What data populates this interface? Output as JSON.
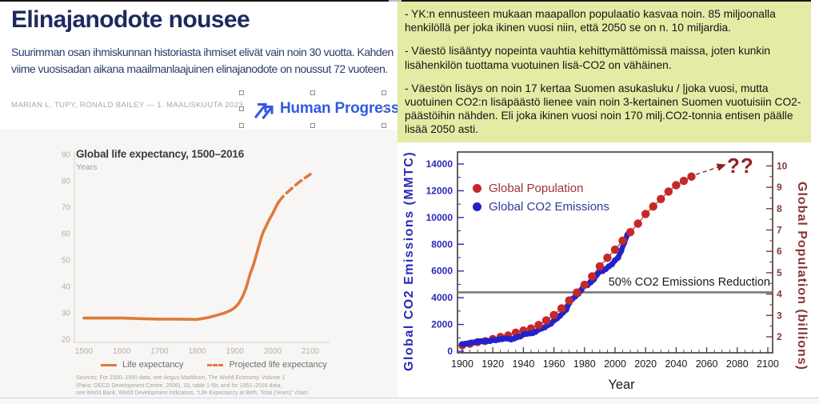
{
  "article": {
    "title": "Elinajanodote nousee",
    "subtitle": "Suurimman osan ihmiskunnan historiasta ihmiset elivät vain noin 30 vuotta. Kahden viime vuosisadan aikana maailmanlaajuinen elinajanodote on noussut 72 vuoteen.",
    "byline": "MARIAN L. TUPY, RONALD BAILEY — 1. MAALISKUUTA 2023",
    "logo": {
      "text": "Human Progress",
      "color": "#2f5ce0"
    }
  },
  "notes": {
    "background": "#e4eba4",
    "paragraphs": [
      "- YK:n ennusteen mukaan maapallon populaatio kasvaa noin. 85 miljoonalla henkilöllä per joka ikinen vuosi niin, että 2050 se on n. 10 miljardia.",
      "- Väestö lisääntyy nopeinta vauhtia kehittymättömissä maissa, joten kunkin lisähenkilön tuottama vuotuinen lisä-CO2 on vähäinen.",
      "- Väestön lisäys on noin 17 kertaa Suomen asukasluku / |joka vuosi, mutta vuotuinen CO2:n lisäpäästö lienee vain noin 3-kertainen Suomen vuotuisiin CO2- päästöihin nähden. Eli joka ikinen vuosi noin 170 milj.CO2-tonnia entisen päälle lisää 2050 asti."
    ]
  },
  "chart_data": [
    {
      "type": "line",
      "title": "Global life expectancy, 1500–2016",
      "subtitle": "Years",
      "xlim": [
        1500,
        2100
      ],
      "ylim": [
        20,
        90
      ],
      "x_ticks": [
        1500,
        1600,
        1700,
        1800,
        1900,
        2000,
        2100
      ],
      "y_ticks": [
        90,
        80,
        70,
        60,
        50,
        40,
        30,
        20
      ],
      "line_color": "#e0793c",
      "legend": [
        "Life expectancy",
        "Projected life expectancy"
      ],
      "series": [
        {
          "name": "Life expectancy",
          "style": "solid",
          "points": [
            [
              1500,
              28
            ],
            [
              1550,
              28
            ],
            [
              1600,
              28
            ],
            [
              1650,
              27.8
            ],
            [
              1700,
              27.6
            ],
            [
              1750,
              27.6
            ],
            [
              1800,
              27.5
            ],
            [
              1830,
              28.2
            ],
            [
              1850,
              29
            ],
            [
              1870,
              29.8
            ],
            [
              1890,
              31
            ],
            [
              1900,
              32
            ],
            [
              1910,
              33.5
            ],
            [
              1920,
              36
            ],
            [
              1930,
              39.5
            ],
            [
              1940,
              44.5
            ],
            [
              1950,
              48.5
            ],
            [
              1955,
              51
            ],
            [
              1960,
              53.5
            ],
            [
              1965,
              56
            ],
            [
              1970,
              58.5
            ],
            [
              1975,
              60.5
            ],
            [
              1980,
              62
            ],
            [
              1985,
              63.5
            ],
            [
              1990,
              65
            ],
            [
              1995,
              66.3
            ],
            [
              2000,
              67.5
            ],
            [
              2005,
              69
            ],
            [
              2010,
              70.5
            ],
            [
              2016,
              72
            ]
          ]
        },
        {
          "name": "Projected life expectancy",
          "style": "dashed",
          "points": [
            [
              2016,
              72
            ],
            [
              2030,
              74.5
            ],
            [
              2050,
              77
            ],
            [
              2070,
              79.5
            ],
            [
              2085,
              81
            ],
            [
              2100,
              82.5
            ]
          ]
        }
      ],
      "sources_lines": [
        "Sources: For 1500–1950 data, see Angus Maddison, The World Economy, Volume 1",
        "(Paris: OECD Development Centre, 2006), 33, table 1-5b; and for 1951–2016 data,",
        "see World Bank, World Development Indicators, “Life Expectancy at Birth, Total (Years)” chart."
      ]
    },
    {
      "type": "scatter",
      "xlabel": "Year",
      "xlim": [
        1896,
        2104
      ],
      "x_major_ticks": [
        1900,
        1920,
        1940,
        1960,
        1980,
        2000,
        2020,
        2040,
        2060,
        2080,
        2100
      ],
      "x_minor_step": 5,
      "left_axis": {
        "title": "Global CO2 Emissions (MMTC)",
        "color": "#2a2ab8",
        "ticks": [
          0,
          2000,
          4000,
          6000,
          8000,
          10000,
          12000,
          14000
        ],
        "minor_step": 1000,
        "range": [
          0,
          14000
        ]
      },
      "right_axis": {
        "title": "Global Population (billions)",
        "color": "#8b3434",
        "ticks": [
          2,
          3,
          4,
          5,
          6,
          7,
          8,
          9,
          10
        ],
        "minor_step": 0.5,
        "range": [
          2,
          10
        ]
      },
      "reduction_line": {
        "label": "50% CO2 Emissions Reduction",
        "value": 4400,
        "color": "#7a7a7a"
      },
      "annotation": {
        "text": "??",
        "color": "#952020"
      },
      "series": [
        {
          "name": "Global Population",
          "axis": "right",
          "dot_color": "#c62828",
          "line_color": "#a83a3a",
          "text_color": "#a13434",
          "points": [
            [
              1900,
              1.6
            ],
            [
              1905,
              1.67
            ],
            [
              1910,
              1.75
            ],
            [
              1915,
              1.8
            ],
            [
              1920,
              1.9
            ],
            [
              1925,
              2.0
            ],
            [
              1930,
              2.07
            ],
            [
              1935,
              2.2
            ],
            [
              1940,
              2.3
            ],
            [
              1945,
              2.4
            ],
            [
              1950,
              2.55
            ],
            [
              1955,
              2.77
            ],
            [
              1960,
              3.02
            ],
            [
              1965,
              3.33
            ],
            [
              1970,
              3.7
            ],
            [
              1975,
              4.07
            ],
            [
              1980,
              4.43
            ],
            [
              1985,
              4.83
            ],
            [
              1990,
              5.3
            ],
            [
              1995,
              5.7
            ],
            [
              2000,
              6.08
            ],
            [
              2005,
              6.5
            ],
            [
              2010,
              6.9
            ],
            [
              2015,
              7.3
            ],
            [
              2020,
              7.75
            ],
            [
              2025,
              8.1
            ],
            [
              2030,
              8.45
            ],
            [
              2035,
              8.8
            ],
            [
              2040,
              9.1
            ],
            [
              2045,
              9.3
            ],
            [
              2050,
              9.5
            ]
          ]
        },
        {
          "name": "Global CO2 Emissions",
          "axis": "left",
          "dot_color": "#2222cc",
          "line_color": "#2222cc",
          "text_color": "#2f3a9e",
          "points": [
            [
              1900,
              530
            ],
            [
              1902,
              560
            ],
            [
              1904,
              580
            ],
            [
              1906,
              640
            ],
            [
              1908,
              660
            ],
            [
              1910,
              700
            ],
            [
              1912,
              750
            ],
            [
              1914,
              720
            ],
            [
              1916,
              780
            ],
            [
              1918,
              760
            ],
            [
              1920,
              840
            ],
            [
              1922,
              820
            ],
            [
              1924,
              880
            ],
            [
              1926,
              900
            ],
            [
              1928,
              950
            ],
            [
              1930,
              940
            ],
            [
              1932,
              880
            ],
            [
              1934,
              950
            ],
            [
              1936,
              1050
            ],
            [
              1938,
              1100
            ],
            [
              1940,
              1250
            ],
            [
              1942,
              1300
            ],
            [
              1944,
              1330
            ],
            [
              1946,
              1350
            ],
            [
              1948,
              1450
            ],
            [
              1950,
              1620
            ],
            [
              1952,
              1700
            ],
            [
              1954,
              1780
            ],
            [
              1956,
              1950
            ],
            [
              1958,
              2050
            ],
            [
              1960,
              2300
            ],
            [
              1962,
              2450
            ],
            [
              1964,
              2650
            ],
            [
              1966,
              2900
            ],
            [
              1968,
              3100
            ],
            [
              1970,
              3600
            ],
            [
              1972,
              3900
            ],
            [
              1974,
              4100
            ],
            [
              1976,
              4300
            ],
            [
              1978,
              4600
            ],
            [
              1980,
              5000
            ],
            [
              1982,
              4950
            ],
            [
              1984,
              5150
            ],
            [
              1986,
              5350
            ],
            [
              1988,
              5700
            ],
            [
              1990,
              5950
            ],
            [
              1992,
              6000
            ],
            [
              1994,
              6150
            ],
            [
              1996,
              6350
            ],
            [
              1998,
              6500
            ],
            [
              2000,
              6800
            ],
            [
              2002,
              7000
            ],
            [
              2004,
              7500
            ],
            [
              2006,
              8100
            ],
            [
              2008,
              8700
            ]
          ]
        }
      ]
    }
  ]
}
